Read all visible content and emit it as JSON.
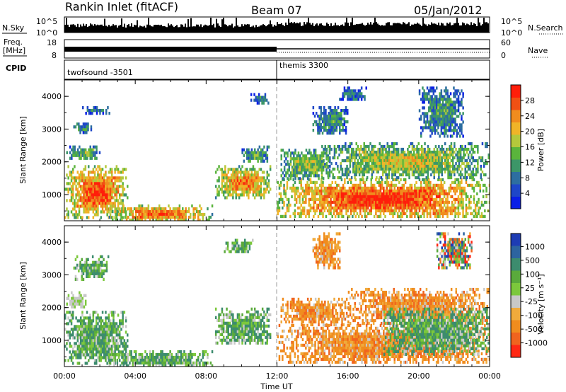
{
  "header": {
    "station": "Rankin Inlet (fitACF)",
    "beam": "Beam 07",
    "date": "05/Jan/2012"
  },
  "params": {
    "nsky_label": "N.Sky",
    "nsearch_label": "N.Search",
    "freq_label_1": "Freq.",
    "freq_label_2": "[MHz]",
    "nave_label": "Nave",
    "cpid_label": "CPID",
    "nsky_ticks": [
      "10^5",
      "10^0"
    ],
    "nsearch_ticks": [
      "10^5",
      "10^0"
    ],
    "freq_ticks": [
      "18",
      "8"
    ],
    "nave_ticks": [
      "60",
      "0"
    ],
    "cpid_segments": [
      {
        "label": "twofsound -3501",
        "start_hour": 0
      },
      {
        "label": "themis 3300",
        "start_hour": 12
      }
    ]
  },
  "chart_data": [
    {
      "type": "heatmap",
      "name": "power-panel",
      "ylabel": "Slant Range [km]",
      "xlabel": "",
      "xlim_hours": [
        0,
        24
      ],
      "ylim": [
        200,
        4500
      ],
      "yticks": [
        "1000",
        "2000",
        "3000",
        "4000"
      ],
      "colorbar": {
        "label": "Power [dB]",
        "ticks": [
          "4",
          "8",
          "12",
          "16",
          "20",
          "24",
          "28"
        ],
        "range": [
          0,
          32
        ],
        "colors": [
          "#0a1ee6",
          "#1e46c8",
          "#2d6ea0",
          "#3c9668",
          "#5ab43c",
          "#b4c83c",
          "#f0b428",
          "#f08c1e",
          "#f05014",
          "#ff1e0a"
        ]
      },
      "blobs": [
        {
          "t0": 0.0,
          "t1": 3.6,
          "r0": 300,
          "r1": 1900,
          "lvl": 0.85
        },
        {
          "t0": 0.1,
          "t1": 2.0,
          "r0": 2100,
          "r1": 2500,
          "lvl": 0.45
        },
        {
          "t0": 0.5,
          "t1": 1.5,
          "r0": 2900,
          "r1": 3200,
          "lvl": 0.3
        },
        {
          "t0": 1.0,
          "t1": 2.5,
          "r0": 3500,
          "r1": 3700,
          "lvl": 0.25
        },
        {
          "t0": 2.5,
          "t1": 8.3,
          "r0": 200,
          "r1": 700,
          "lvl": 0.8
        },
        {
          "t0": 8.5,
          "t1": 11.6,
          "r0": 900,
          "r1": 1900,
          "lvl": 0.75
        },
        {
          "t0": 10.0,
          "t1": 11.5,
          "r0": 2000,
          "r1": 2500,
          "lvl": 0.4
        },
        {
          "t0": 10.5,
          "t1": 11.5,
          "r0": 3800,
          "r1": 4100,
          "lvl": 0.3
        },
        {
          "t0": 12.0,
          "t1": 24.0,
          "r0": 300,
          "r1": 1500,
          "lvl": 0.9
        },
        {
          "t0": 12.2,
          "t1": 15.0,
          "r0": 1500,
          "r1": 2400,
          "lvl": 0.5
        },
        {
          "t0": 14.5,
          "t1": 24.0,
          "r0": 1500,
          "r1": 2600,
          "lvl": 0.55
        },
        {
          "t0": 14.0,
          "t1": 16.0,
          "r0": 2900,
          "r1": 3700,
          "lvl": 0.35
        },
        {
          "t0": 15.5,
          "t1": 17.0,
          "r0": 3900,
          "r1": 4300,
          "lvl": 0.25
        },
        {
          "t0": 20.0,
          "t1": 22.5,
          "r0": 2800,
          "r1": 4300,
          "lvl": 0.35
        }
      ]
    },
    {
      "type": "heatmap",
      "name": "velocity-panel",
      "ylabel": "Slant Range [km]",
      "xlabel": "Time UT",
      "xlim_hours": [
        0,
        24
      ],
      "ylim": [
        200,
        4500
      ],
      "yticks": [
        "1000",
        "2000",
        "3000",
        "4000"
      ],
      "xticks": [
        "00:00",
        "04:00",
        "08:00",
        "12:00",
        "16:00",
        "20:00",
        "00:00"
      ],
      "colorbar": {
        "label": "Velocity [m s⁻¹]",
        "ticks": [
          "1000",
          "500",
          "100",
          "25",
          "-25",
          "-100",
          "-500",
          "-1000"
        ],
        "colors": [
          "#1e3cb4",
          "#2d64a0",
          "#3c8c6e",
          "#5aaa3c",
          "#7cc83c",
          "#c8c8c8",
          "#f0aa3c",
          "#f08c1e",
          "#f0641e",
          "#ff2814"
        ]
      },
      "blobs": [
        {
          "t0": 0.0,
          "t1": 3.6,
          "r0": 300,
          "r1": 1900,
          "cls": "green"
        },
        {
          "t0": 0.1,
          "t1": 1.2,
          "r0": 2000,
          "r1": 2500,
          "cls": "grey"
        },
        {
          "t0": 0.5,
          "t1": 2.5,
          "r0": 2900,
          "r1": 3600,
          "cls": "green"
        },
        {
          "t0": 2.5,
          "t1": 8.3,
          "r0": 200,
          "r1": 700,
          "cls": "green"
        },
        {
          "t0": 8.5,
          "t1": 11.6,
          "r0": 900,
          "r1": 2000,
          "cls": "green"
        },
        {
          "t0": 9.0,
          "t1": 10.6,
          "r0": 3700,
          "r1": 4100,
          "cls": "green"
        },
        {
          "t0": 12.0,
          "t1": 24.0,
          "r0": 300,
          "r1": 1500,
          "cls": "orange"
        },
        {
          "t0": 12.2,
          "t1": 16.0,
          "r0": 1500,
          "r1": 2300,
          "cls": "orange"
        },
        {
          "t0": 16.0,
          "t1": 24.0,
          "r0": 1500,
          "r1": 2600,
          "cls": "orange"
        },
        {
          "t0": 18.0,
          "t1": 24.0,
          "r0": 600,
          "r1": 2000,
          "cls": "green"
        },
        {
          "t0": 14.0,
          "t1": 15.5,
          "r0": 3200,
          "r1": 4300,
          "cls": "orange"
        },
        {
          "t0": 21.0,
          "t1": 23.0,
          "r0": 3200,
          "r1": 4300,
          "cls": "mixed"
        }
      ]
    }
  ]
}
